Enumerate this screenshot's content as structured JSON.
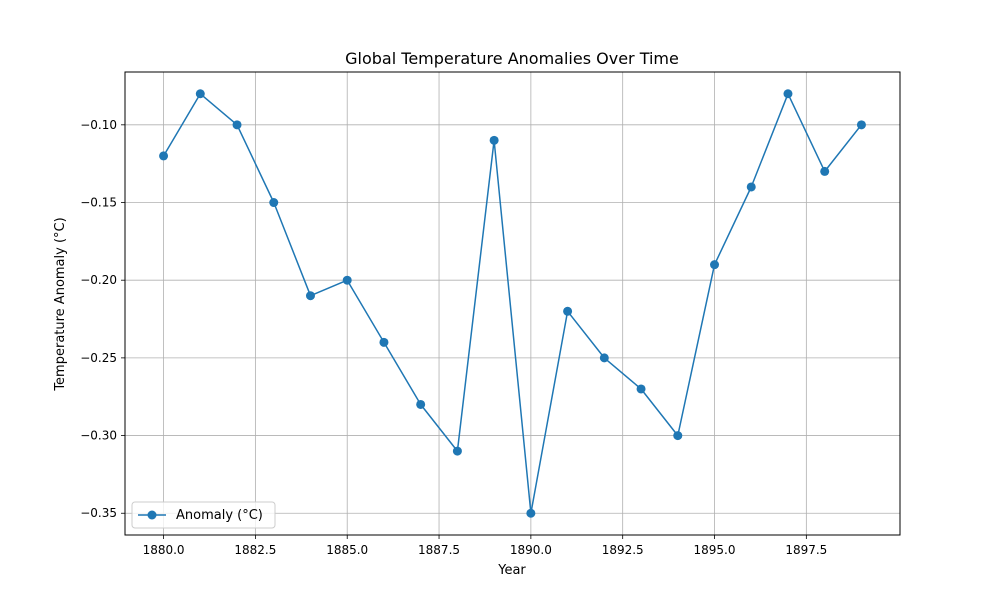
{
  "chart_data": {
    "type": "line",
    "title": "Global Temperature Anomalies Over Time",
    "xlabel": "Year",
    "ylabel": "Temperature Anomaly (°C)",
    "xlim": [
      1878.95,
      1900.05
    ],
    "ylim": [
      -0.364,
      -0.066
    ],
    "grid": true,
    "legend_position": "lower-left",
    "x_ticks": [
      1880.0,
      1882.5,
      1885.0,
      1887.5,
      1890.0,
      1892.5,
      1895.0,
      1897.5
    ],
    "x_tick_labels": [
      "1880.0",
      "1882.5",
      "1885.0",
      "1887.5",
      "1890.0",
      "1892.5",
      "1895.0",
      "1897.5"
    ],
    "y_ticks": [
      -0.35,
      -0.3,
      -0.25,
      -0.2,
      -0.15,
      -0.1
    ],
    "y_tick_labels": [
      "−0.35",
      "−0.30",
      "−0.25",
      "−0.20",
      "−0.15",
      "−0.10"
    ],
    "series": [
      {
        "name": "Anomaly (°C)",
        "color": "#1f77b4",
        "marker": "circle",
        "x": [
          1880,
          1881,
          1882,
          1883,
          1884,
          1885,
          1886,
          1887,
          1888,
          1889,
          1890,
          1891,
          1892,
          1893,
          1894,
          1895,
          1896,
          1897,
          1898,
          1899
        ],
        "y": [
          -0.12,
          -0.08,
          -0.1,
          -0.15,
          -0.21,
          -0.2,
          -0.24,
          -0.28,
          -0.31,
          -0.11,
          -0.35,
          -0.22,
          -0.25,
          -0.27,
          -0.3,
          -0.19,
          -0.14,
          -0.08,
          -0.13,
          -0.1
        ]
      }
    ]
  }
}
